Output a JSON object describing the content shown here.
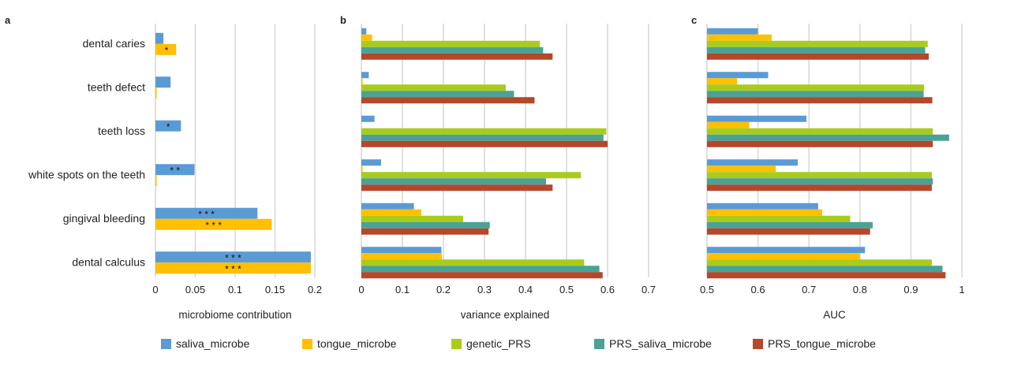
{
  "colors": {
    "saliva_microbe": "#5B9BD5",
    "tongue_microbe": "#FFC000",
    "genetic_PRS": "#A9CC1A",
    "PRS_saliva_microbe": "#4AA296",
    "PRS_tongue_microbe": "#B5472A",
    "grid": "#D9D9D9"
  },
  "legend": [
    {
      "key": "saliva_microbe",
      "label": "saliva_microbe"
    },
    {
      "key": "tongue_microbe",
      "label": "tongue_microbe"
    },
    {
      "key": "genetic_PRS",
      "label": "genetic_PRS"
    },
    {
      "key": "PRS_saliva_microbe",
      "label": "PRS_saliva_microbe"
    },
    {
      "key": "PRS_tongue_microbe",
      "label": "PRS_tongue_microbe"
    }
  ],
  "chart_data": [
    {
      "panel": "a",
      "type": "bar",
      "orientation": "horizontal",
      "xlabel": "microbiome contribution",
      "xlim": [
        0,
        0.2
      ],
      "xticks": [
        "0",
        "0.05",
        "0.1",
        "0.15",
        "0.2"
      ],
      "categories": [
        "dental caries",
        "teeth defect",
        "teeth loss",
        "white spots on the teeth",
        "gingival bleeding",
        "dental calculus"
      ],
      "series": [
        {
          "name": "saliva_microbe",
          "values": [
            0.01,
            0.019,
            0.032,
            0.049,
            0.128,
            0.195
          ],
          "significance": [
            "",
            "",
            "*",
            "* *",
            "* * *",
            "* * *"
          ]
        },
        {
          "name": "tongue_microbe",
          "values": [
            0.026,
            0.001,
            0.0,
            0.001,
            0.146,
            0.195
          ],
          "significance": [
            "*",
            "",
            "",
            "",
            "* * *",
            "* * *"
          ]
        }
      ],
      "grid": true
    },
    {
      "panel": "b",
      "type": "bar",
      "orientation": "horizontal",
      "xlabel": "variance explained",
      "xlim": [
        0,
        0.7
      ],
      "xticks": [
        "0",
        "0.1",
        "0.2",
        "0.3",
        "0.4",
        "0.5",
        "0.6",
        "0.7"
      ],
      "categories": [
        "dental caries",
        "teeth defect",
        "teeth loss",
        "white spots on the teeth",
        "gingival bleeding",
        "dental calculus"
      ],
      "series": [
        {
          "name": "saliva_microbe",
          "values": [
            0.012,
            0.018,
            0.032,
            0.048,
            0.128,
            0.195
          ]
        },
        {
          "name": "tongue_microbe",
          "values": [
            0.026,
            0.001,
            0.0,
            0.001,
            0.146,
            0.196
          ]
        },
        {
          "name": "genetic_PRS",
          "values": [
            0.435,
            0.352,
            0.597,
            0.535,
            0.248,
            0.543
          ]
        },
        {
          "name": "PRS_saliva_microbe",
          "values": [
            0.443,
            0.372,
            0.59,
            0.45,
            0.313,
            0.58
          ]
        },
        {
          "name": "PRS_tongue_microbe",
          "values": [
            0.466,
            0.422,
            0.6,
            0.466,
            0.31,
            0.588
          ]
        }
      ],
      "grid": true
    },
    {
      "panel": "c",
      "type": "bar",
      "orientation": "horizontal",
      "xlabel": "AUC",
      "xlim": [
        0.5,
        1
      ],
      "xticks": [
        "0.5",
        "0.6",
        "0.7",
        "0.8",
        "0.9",
        "1"
      ],
      "categories": [
        "dental caries",
        "teeth defect",
        "teeth loss",
        "white spots on the teeth",
        "gingival bleeding",
        "dental calculus"
      ],
      "series": [
        {
          "name": "saliva_microbe",
          "values": [
            0.6,
            0.62,
            0.695,
            0.678,
            0.718,
            0.81
          ]
        },
        {
          "name": "tongue_microbe",
          "values": [
            0.627,
            0.559,
            0.583,
            0.635,
            0.726,
            0.8
          ]
        },
        {
          "name": "genetic_PRS",
          "values": [
            0.933,
            0.926,
            0.943,
            0.941,
            0.781,
            0.941
          ]
        },
        {
          "name": "PRS_saliva_microbe",
          "values": [
            0.928,
            0.925,
            0.975,
            0.943,
            0.825,
            0.962
          ]
        },
        {
          "name": "PRS_tongue_microbe",
          "values": [
            0.935,
            0.942,
            0.943,
            0.941,
            0.82,
            0.968
          ]
        }
      ],
      "grid": true
    }
  ]
}
